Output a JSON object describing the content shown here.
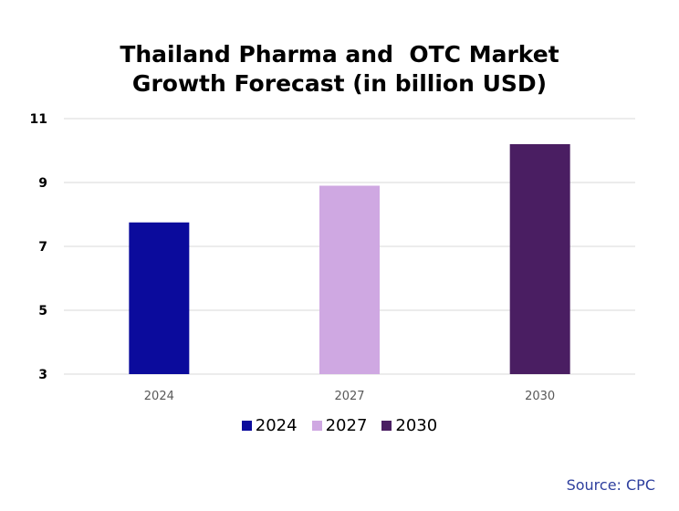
{
  "chart_data": {
    "type": "bar",
    "title_lines": [
      "Thailand Pharma and  OTC Market",
      "Growth Forecast (in billion USD)"
    ],
    "categories": [
      "2024",
      "2027",
      "2030"
    ],
    "values": [
      7.75,
      8.9,
      10.2
    ],
    "colors": [
      "#0b0b9c",
      "#cfa8e2",
      "#4a1e62"
    ],
    "yticks": [
      "3",
      "5",
      "7",
      "9",
      "11"
    ],
    "ylim": [
      3,
      11
    ],
    "grid": true,
    "legend_position": "bottom",
    "legend": [
      "2024",
      "2027",
      "2030"
    ]
  },
  "source_text": "Source: CPC"
}
